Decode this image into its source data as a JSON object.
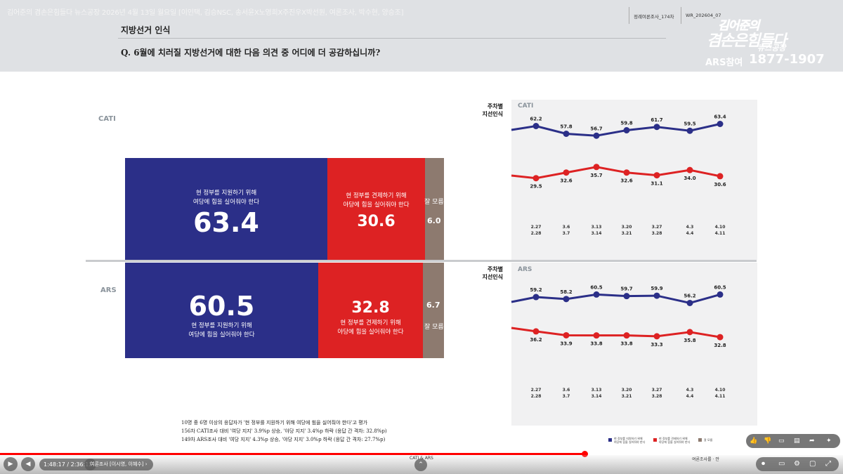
{
  "header": {
    "video_title": "김어준의 겸손은힘들다 뉴스공장 2026년 4월 13일 월요일 [이인택, 김승NSC, 송서윤X노영희X주진우X박선원, 여론조사, 박수현, 양승조]",
    "section_title": "지방선거 인식",
    "question": "Q. 6월에 치러질 지방선거에 대한 다음 의견 중 어디에 더 공감하십니까?",
    "survey_tag": "정례여론조사_174차",
    "survey_code": "WR_202604_07"
  },
  "logo": {
    "line1": "김어준의",
    "line2": "겸손은힘들다",
    "line3": "뉴스공장",
    "ars_label": "ARS참여",
    "phone": "1877-1907"
  },
  "colors": {
    "support": "#2b2f88",
    "check": "#dd2223",
    "dont_know": "#8d7a6f"
  },
  "left_chart": {
    "cati": {
      "label": "CATI",
      "support_desc1": "현 정부를 지원하기 위해",
      "support_desc2": "여당에 힘을 실어줘야 한다",
      "support_value": "63.4",
      "check_desc1": "현 정부를 견제하기 위해",
      "check_desc2": "야당에 힘을 실어줘야 한다",
      "check_value": "30.6",
      "dk_label": "잘 모름",
      "dk_value": "6.0"
    },
    "ars": {
      "label": "ARS",
      "support_desc1": "현 정부를 지원하기 위해",
      "support_desc2": "여당에 힘을 실어줘야 한다",
      "support_value": "60.5",
      "check_desc1": "현 정부를 견제하기 위해",
      "check_desc2": "야당에 힘을 실어줘야 한다",
      "check_value": "32.8",
      "dk_label": "잘 모름",
      "dk_value": "6.7"
    }
  },
  "trend": {
    "side_label_1": "주차별",
    "side_label_2": "지선인식",
    "cati_tag": "CATI",
    "ars_tag": "ARS",
    "date_top": [
      "2.27",
      "3.6",
      "3.13",
      "3.20",
      "3.27",
      "4.3",
      "4.10"
    ],
    "date_bottom": [
      "2.28",
      "3.7",
      "3.14",
      "3.21",
      "3.28",
      "4.4",
      "4.11"
    ],
    "legend": [
      {
        "line1": "현 정부를 지원하기 위해",
        "line2": "여당에 힘을 실어줘야 한다"
      },
      {
        "line1": "현 정부를 견제하기 위해",
        "line2": "야당에 힘을 실어줘야 한다"
      },
      {
        "line1": "잘 모름",
        "line2": ""
      }
    ]
  },
  "chart_data": [
    {
      "type": "bar",
      "stacked": true,
      "orientation": "horizontal",
      "categories": [
        "CATI",
        "ARS"
      ],
      "series": [
        {
          "name": "현 정부를 지원하기 위해 여당에 힘을 실어줘야 한다",
          "values": [
            63.4,
            60.5
          ]
        },
        {
          "name": "현 정부를 견제하기 위해 야당에 힘을 실어줘야 한다",
          "values": [
            30.6,
            32.8
          ]
        },
        {
          "name": "잘 모름",
          "values": [
            6.0,
            6.7
          ]
        }
      ]
    },
    {
      "type": "line",
      "title": "CATI",
      "x": [
        "2.27-2.28",
        "3.6-3.7",
        "3.13-3.14",
        "3.20-3.21",
        "3.27-3.28",
        "4.3-4.4",
        "4.10-4.11"
      ],
      "series": [
        {
          "name": "현 정부를 지원하기 위해 여당에 힘을 실어줘야 한다",
          "values": [
            62.2,
            57.8,
            56.7,
            59.8,
            61.7,
            59.5,
            63.4
          ]
        },
        {
          "name": "현 정부를 견제하기 위해 야당에 힘을 실어줘야 한다",
          "values": [
            29.5,
            32.6,
            35.7,
            32.6,
            31.1,
            34.0,
            30.6
          ]
        }
      ]
    },
    {
      "type": "line",
      "title": "ARS",
      "x": [
        "2.27-2.28",
        "3.6-3.7",
        "3.13-3.14",
        "3.20-3.21",
        "3.27-3.28",
        "4.3-4.4",
        "4.10-4.11"
      ],
      "series": [
        {
          "name": "현 정부를 지원하기 위해 여당에 힘을 실어줘야 한다",
          "values": [
            59.2,
            58.2,
            60.5,
            59.7,
            59.9,
            56.2,
            60.5
          ]
        },
        {
          "name": "현 정부를 견제하기 위해 야당에 힘을 실어줘야 한다",
          "values": [
            36.2,
            33.9,
            33.8,
            33.8,
            33.3,
            35.8,
            32.8
          ]
        }
      ]
    }
  ],
  "footnote": {
    "line1": "10명 중 6명 이상의 응답자가 '현 정부를 지원하기 위해 여당에 힘을 실어줘야 한다'고 평가",
    "line2": "156차 CATI조사 대비 '여당 지지' 3.9%p 상승, '야당 지지' 3.4%p 하락 (응답 간 격차: 32.8%p)",
    "line3": "149차 ARS조사 대비 '여당 지지' 4.3%p 상승, '야당 지지' 3.0%p 하락 (응답 간 격차: 27.7%p)"
  },
  "player": {
    "time": "1:48:17 / 2:36:12",
    "progress": 0.693,
    "chapter": "여론조사 [이시영, 이혜수] ›",
    "chapter_mid": "CATI & ARS",
    "chapter_right": "여론조사를 · 안"
  }
}
